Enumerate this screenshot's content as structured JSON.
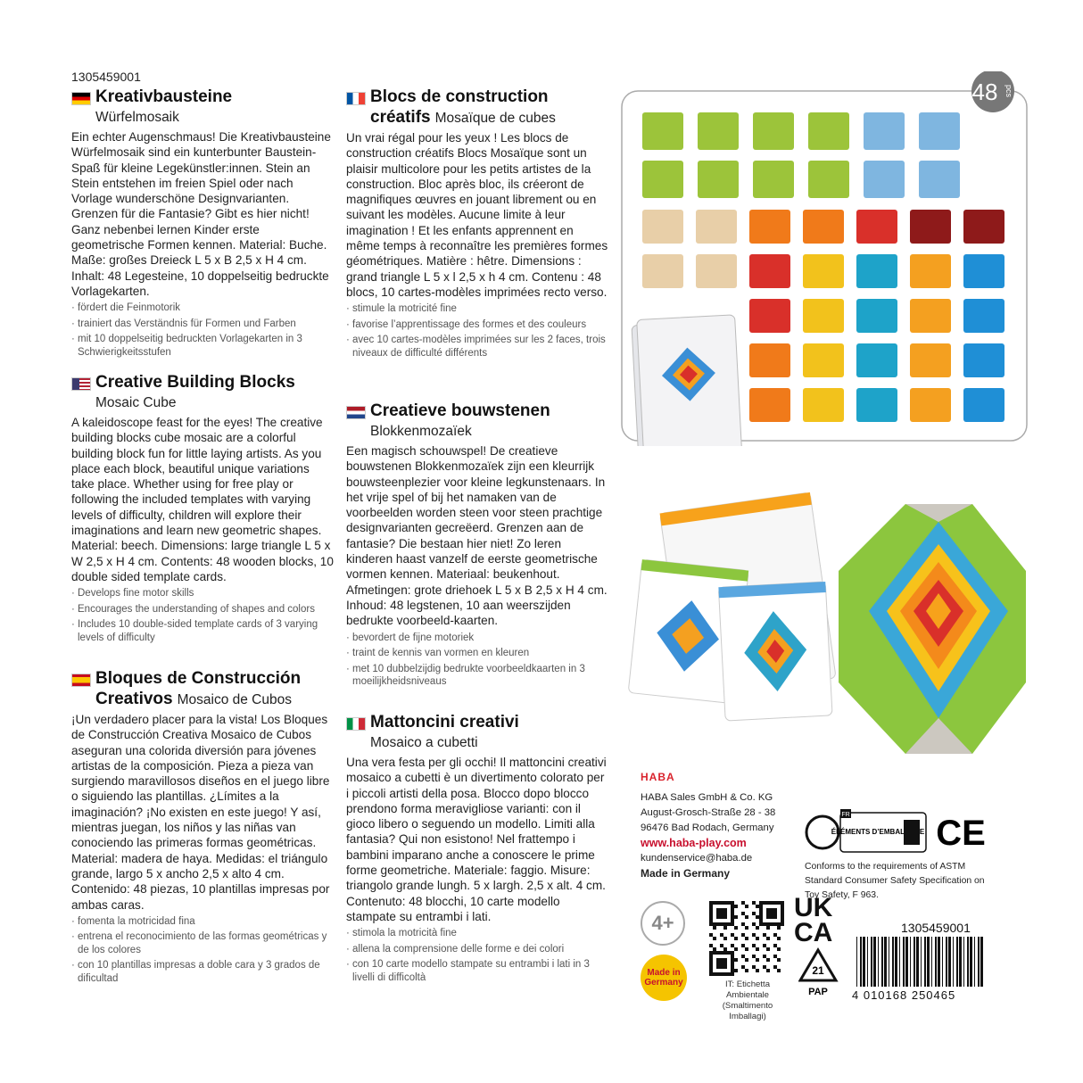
{
  "article_number": "1305459001",
  "badge": {
    "count": "48",
    "unit": "pcs"
  },
  "sections": [
    {
      "title": "Kreativbausteine",
      "subtitle": "Würfelmosaik",
      "body": "Ein echter Augenschmaus! Die Kreativbausteine Würfelmosaik sind ein kunterbunter Baustein-Spaß für kleine Legekünstler:innen. Stein an Stein entstehen im freien Spiel oder nach Vorlage wunderschöne Designvarianten. Grenzen für die Fantasie? Gibt es hier nicht! Ganz nebenbei lernen Kinder erste geometrische Formen kennen. Material: Buche. Maße: großes Dreieck L 5 x B 2,5 x H 4 cm. Inhalt: 48 Legesteine, 10 doppelseitig bedruckte Vorlagekarten.",
      "bullets": [
        "fördert die Feinmotorik",
        "trainiert das Verständnis für Formen und Farben",
        "mit 10 doppelseitig bedruckten Vorlagekarten in 3 Schwierigkeitsstufen"
      ]
    },
    {
      "title": "Creative Building Blocks",
      "subtitle": "Mosaic Cube",
      "body": "A kaleidoscope feast for the eyes! The creative building blocks cube mosaic are a colorful building block fun for little laying artists. As you place each block, beautiful unique variations take place. Whether using for free play or following the included templates with varying levels of difficulty, children will explore their imaginations and learn new geometric shapes. Material: beech. Dimensions: large triangle L 5 x W 2,5 x H 4 cm. Contents: 48 wooden blocks, 10 double sided template cards.",
      "bullets": [
        "Develops fine motor skills",
        "Encourages the understanding of shapes and colors",
        "Includes 10 double-sided template cards of 3 varying levels of difficulty"
      ]
    },
    {
      "title": "Bloques de Construcción Creativos",
      "subtitle": "Mosaico de Cubos",
      "body": "¡Un verdadero placer para la vista! Los Bloques de Construcción Creativa Mosaico de Cubos aseguran una colorida diversión para jóvenes artistas de la composición. Pieza a pieza van surgiendo maravillosos diseños en el juego libre o siguiendo las plantillas. ¿Límites a la imaginación? ¡No existen en este juego! Y así, mientras juegan, los niños y las niñas van conociendo las primeras formas geométricas. Material: madera de haya. Medidas: el triángulo grande, largo 5 x ancho 2,5 x alto 4 cm. Contenido: 48 piezas, 10 plantillas impresas por ambas caras.",
      "bullets": [
        "fomenta la motricidad fina",
        "entrena el reconocimiento de las formas geométricas y de los colores",
        "con 10 plantillas impresas a doble cara y 3 grados de dificultad"
      ]
    },
    {
      "title": "Blocs de construction créatifs",
      "subtitle": "Mosaïque de cubes",
      "body": "Un vrai régal pour les yeux ! Les blocs de construction créatifs Blocs Mosaïque sont un plaisir multicolore pour les petits artistes de la construction. Bloc après bloc, ils créeront de magnifiques œuvres en jouant librement ou en suivant les modèles. Aucune limite à leur imagination ! Et les enfants apprennent en même temps à reconnaître les premières formes géométriques. Matière : hêtre. Dimensions : grand triangle L 5 x l 2,5 x h 4 cm. Contenu : 48 blocs, 10 cartes-modèles imprimées recto verso.",
      "bullets": [
        "stimule la motricité fine",
        "favorise l’apprentissage des formes et des couleurs",
        "avec 10 cartes-modèles imprimées sur les 2 faces, trois niveaux de difficulté différents"
      ]
    },
    {
      "title": "Creatieve bouwstenen",
      "subtitle": "Blokkenmozaïek",
      "body": "Een magisch schouwspel! De creatieve bouwstenen Blokkenmozaïek zijn een kleurrijk bouwsteenplezier voor kleine legkunstenaars. In het vrije spel of bij het namaken van de voorbeelden worden steen voor steen prachtige designvarianten gecreëerd. Grenzen aan de fantasie? Die bestaan hier niet! Zo leren kinderen haast vanzelf de eerste geometrische vormen kennen. Materiaal: beukenhout. Afmetingen: grote driehoek L 5 x B 2,5 x H 4 cm. Inhoud: 48 legstenen, 10 aan weerszijden bedrukte voorbeeld-kaarten.",
      "bullets": [
        "bevordert de fijne motoriek",
        "traint de kennis van vormen en kleuren",
        "met 10 dubbelzijdig bedrukte voorbeeldkaarten in 3 moeilijkheidsniveaus"
      ]
    },
    {
      "title": "Mattoncini creativi",
      "subtitle": "Mosaico a cubetti",
      "body": "Una vera festa per gli occhi! Il mattoncini creativi mosaico a cubetti è un divertimento colorato per i piccoli artisti della posa. Blocco dopo blocco prendono forma meravigliose varianti: con il gioco libero o seguendo un modello. Limiti alla fantasia? Qui non esistono! Nel frattempo i bambini imparano anche a conoscere le prime forme geometriche. Materiale: faggio. Misure: triangolo grande lungh. 5 x largh. 2,5 x alt. 4 cm. Contenuto: 48 blocchi, 10 carte modello stampate su entrambi i lati.",
      "bullets": [
        "stimola la motricità fine",
        "allena la comprensione delle forme e dei colori",
        "con 10 carte modello stampate su entrambi i lati in 3 livelli di difficoltà"
      ]
    }
  ],
  "company": {
    "logo": "HABA",
    "lines": [
      "HABA Sales GmbH & Co. KG",
      "August-Grosch-Straße 28 - 38",
      "96476 Bad Rodach, Germany"
    ],
    "web": "www.haba-play.com",
    "email": "kundenservice@haba.de",
    "made": "Made in Germany"
  },
  "compliance": "Conforms to the requirements of ASTM Standard Consumer Safety Specification on Toy Safety, F 963.",
  "triman": {
    "country": "FR",
    "label": "ÉLÉMENTS D’EMBALLAGE"
  },
  "ce": "CE",
  "age": "4+",
  "made_badge": "Made in Germany",
  "it_label": "IT: Etichetta Ambientale (Smaltimento Imballagi)",
  "ukca": [
    "UK",
    "CA"
  ],
  "recycle": {
    "code": "21",
    "material": "PAP"
  },
  "barcode": {
    "article": "1305459001",
    "ean": "4 010168 250465"
  }
}
